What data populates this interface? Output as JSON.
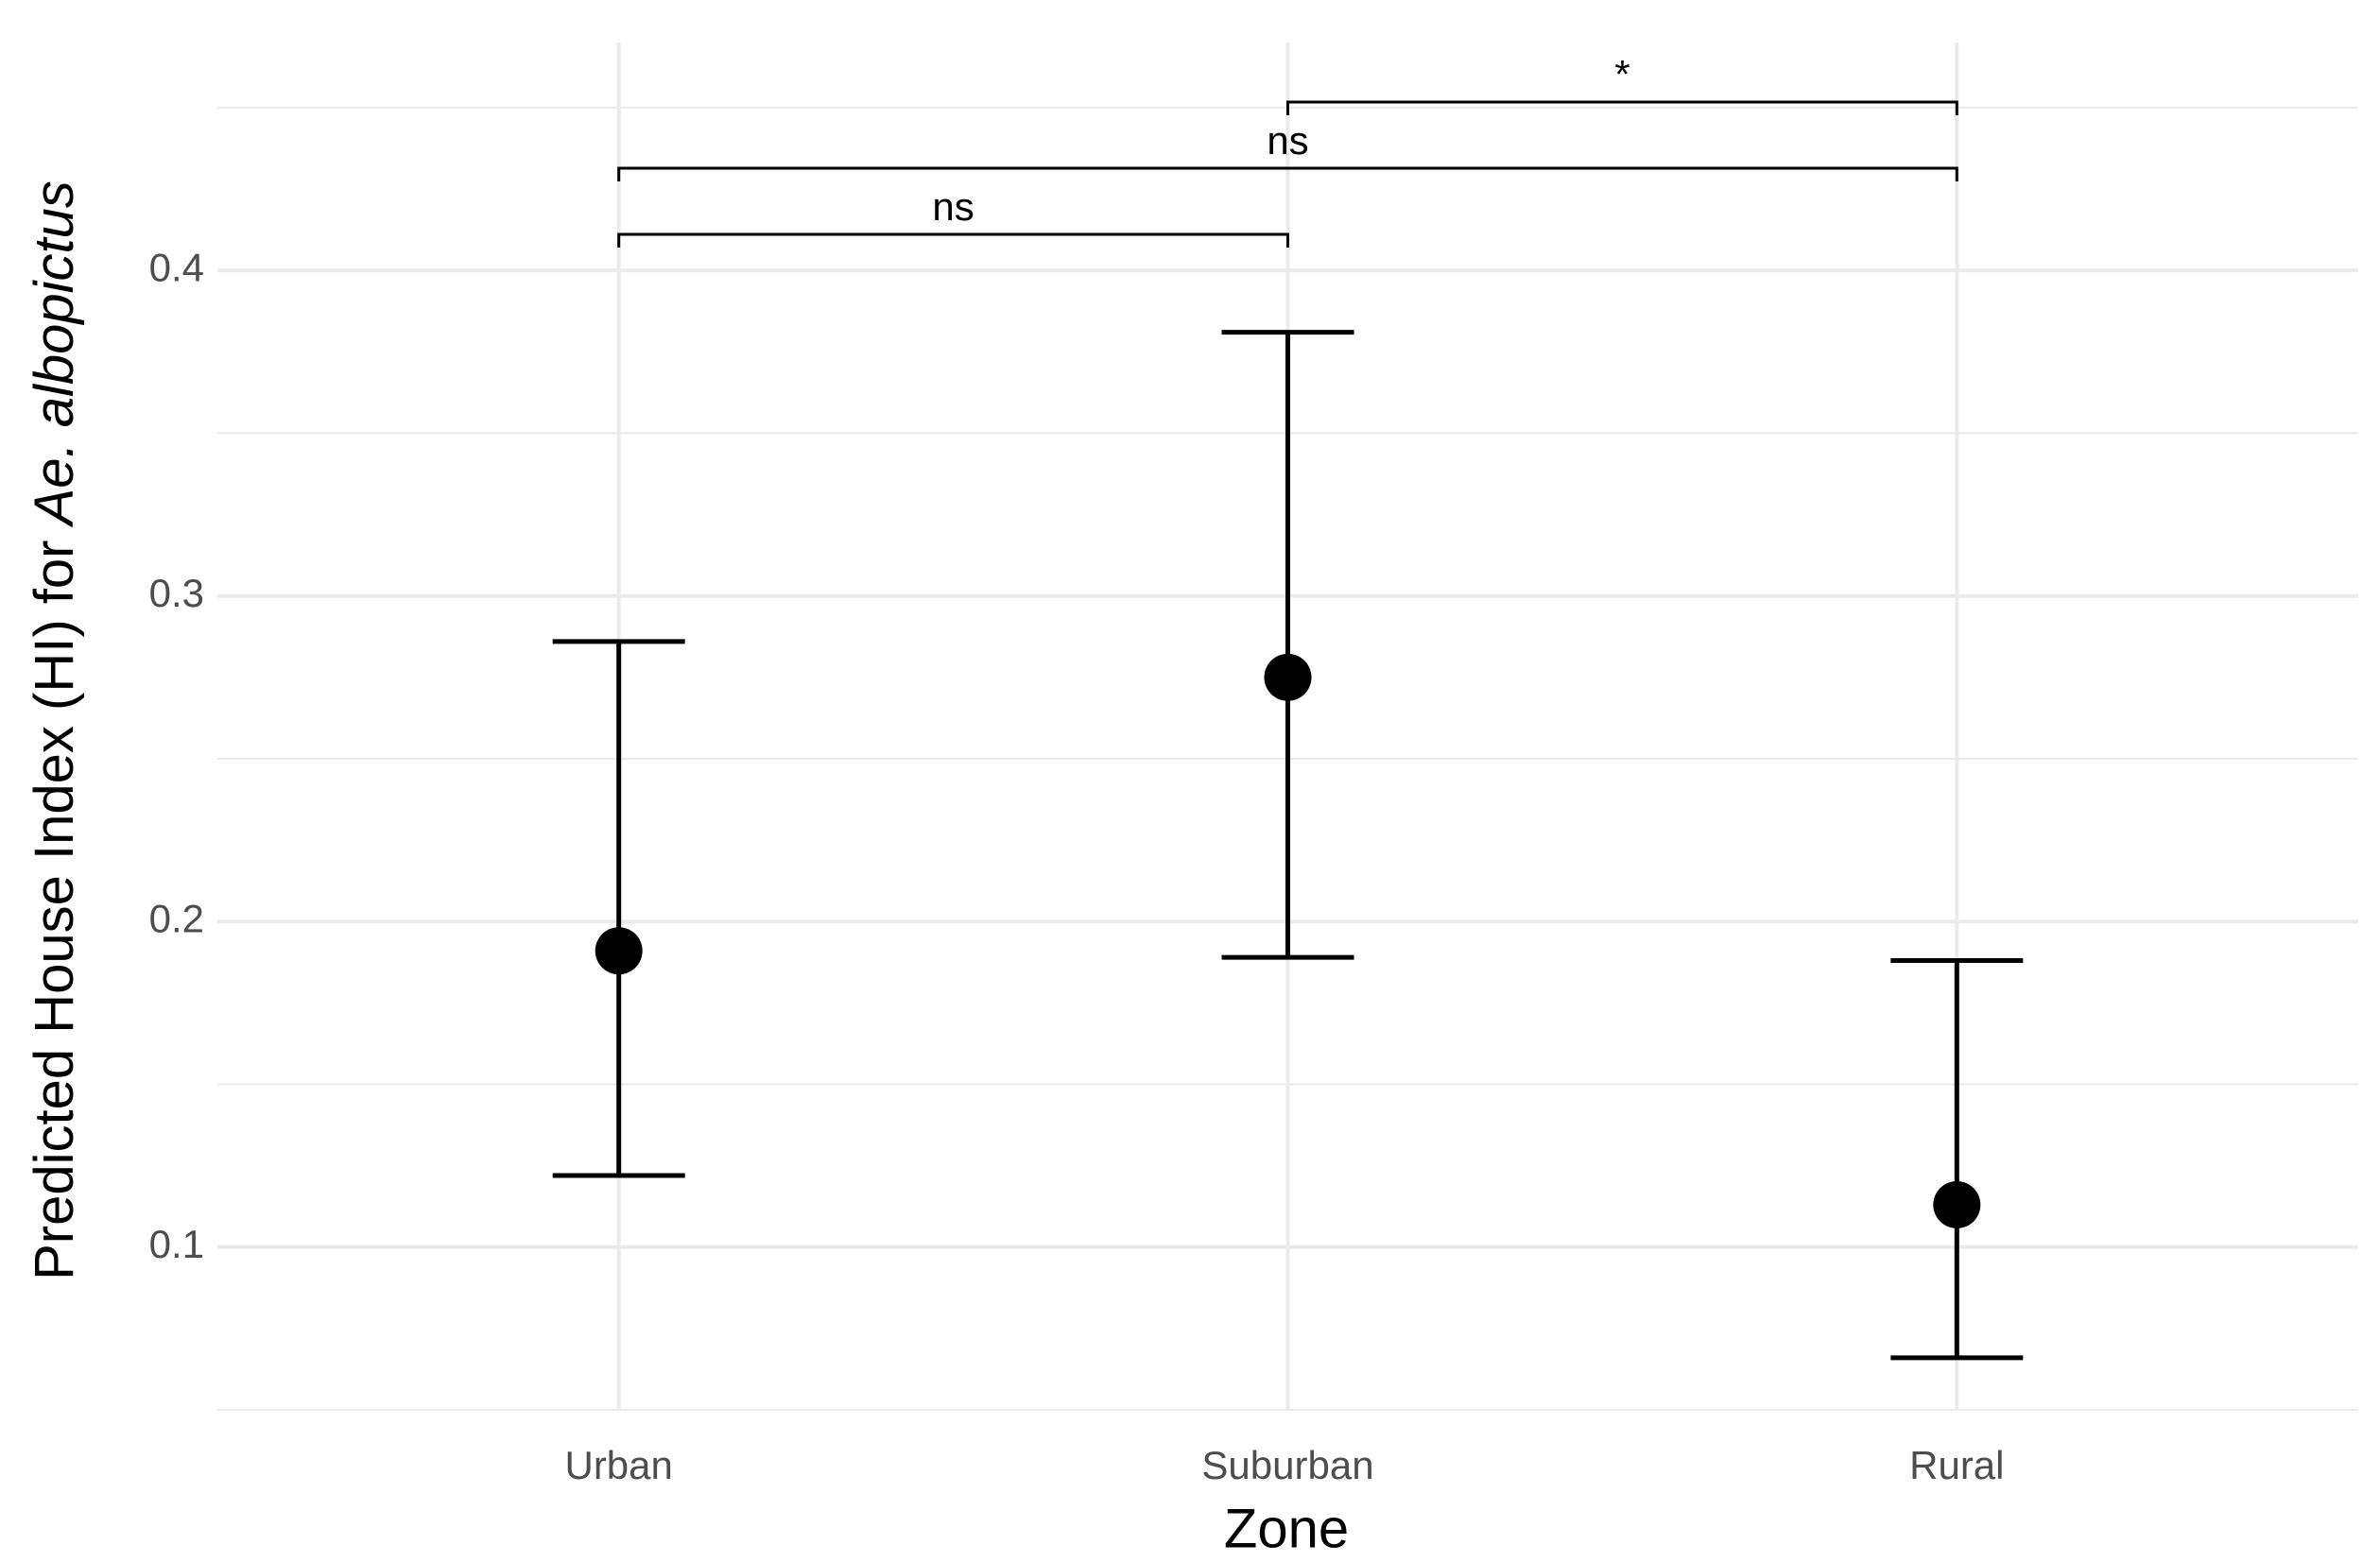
{
  "chart_data": {
    "type": "pointrange",
    "x_label": "Zone",
    "y_label": [
      "Predicted House Index (HI) for ",
      "Ae. albopictus"
    ],
    "categories": [
      "Urban",
      "Suburban",
      "Rural"
    ],
    "values": [
      0.191,
      0.275,
      0.113
    ],
    "lower": [
      0.122,
      0.189,
      0.066
    ],
    "upper": [
      0.286,
      0.381,
      0.188
    ],
    "color": "#000000",
    "ylim": [
      0.05,
      0.47
    ],
    "yticks": [
      0.1,
      0.2,
      0.3,
      0.4
    ],
    "y_minor_ticks": [
      0.05,
      0.15,
      0.25,
      0.35,
      0.45
    ],
    "grid": true,
    "annotations": [
      "ns",
      "ns",
      "*"
    ]
  }
}
